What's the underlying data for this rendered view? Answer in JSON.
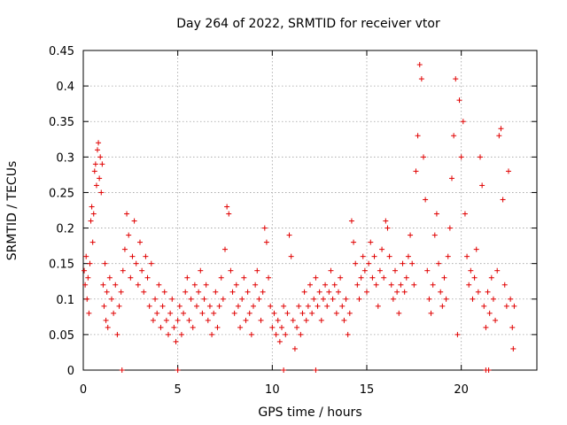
{
  "chart_data": {
    "type": "scatter",
    "title": "Day 264 of 2022, SRMTID for receiver vtor",
    "xlabel": "GPS time / hours",
    "ylabel": "SRMTID / TECUs",
    "xlim": [
      0,
      24
    ],
    "ylim": [
      0,
      0.45
    ],
    "x_ticks": [
      0,
      5,
      10,
      15,
      20
    ],
    "y_ticks": [
      0,
      0.05,
      0.1,
      0.15,
      0.2,
      0.25,
      0.3,
      0.35,
      0.4,
      0.45
    ],
    "y_tick_labels": [
      "0",
      "0.05",
      "0.1",
      "0.15",
      "0.2",
      "0.25",
      "0.3",
      "0.35",
      "0.4",
      "0.45"
    ],
    "grid": true,
    "marker": "plus",
    "series": [
      {
        "color": "#e00000",
        "points": [
          [
            0.05,
            0.14
          ],
          [
            0.1,
            0.12
          ],
          [
            0.15,
            0.16
          ],
          [
            0.2,
            0.1
          ],
          [
            0.25,
            0.13
          ],
          [
            0.3,
            0.08
          ],
          [
            0.35,
            0.15
          ],
          [
            0.4,
            0.21
          ],
          [
            0.45,
            0.23
          ],
          [
            0.5,
            0.18
          ],
          [
            0.55,
            0.22
          ],
          [
            0.6,
            0.28
          ],
          [
            0.65,
            0.29
          ],
          [
            0.7,
            0.26
          ],
          [
            0.75,
            0.31
          ],
          [
            0.8,
            0.32
          ],
          [
            0.85,
            0.27
          ],
          [
            0.9,
            0.3
          ],
          [
            0.95,
            0.25
          ],
          [
            1.0,
            0.29
          ],
          [
            1.05,
            0.12
          ],
          [
            1.1,
            0.09
          ],
          [
            1.15,
            0.15
          ],
          [
            1.2,
            0.07
          ],
          [
            1.25,
            0.11
          ],
          [
            1.3,
            0.06
          ],
          [
            1.4,
            0.13
          ],
          [
            1.5,
            0.1
          ],
          [
            1.6,
            0.08
          ],
          [
            1.7,
            0.12
          ],
          [
            1.8,
            0.05
          ],
          [
            1.9,
            0.09
          ],
          [
            2.0,
            0.11
          ],
          [
            2.1,
            0.14
          ],
          [
            2.2,
            0.17
          ],
          [
            2.3,
            0.22
          ],
          [
            2.4,
            0.19
          ],
          [
            2.5,
            0.13
          ],
          [
            2.6,
            0.16
          ],
          [
            2.7,
            0.21
          ],
          [
            2.8,
            0.15
          ],
          [
            2.9,
            0.12
          ],
          [
            3.0,
            0.18
          ],
          [
            3.1,
            0.14
          ],
          [
            3.2,
            0.11
          ],
          [
            3.3,
            0.16
          ],
          [
            3.4,
            0.13
          ],
          [
            3.5,
            0.09
          ],
          [
            3.6,
            0.15
          ],
          [
            3.7,
            0.07
          ],
          [
            3.8,
            0.1
          ],
          [
            3.9,
            0.08
          ],
          [
            4.0,
            0.12
          ],
          [
            4.1,
            0.06
          ],
          [
            4.2,
            0.09
          ],
          [
            4.3,
            0.11
          ],
          [
            4.4,
            0.07
          ],
          [
            4.5,
            0.05
          ],
          [
            4.6,
            0.08
          ],
          [
            4.7,
            0.1
          ],
          [
            4.8,
            0.06
          ],
          [
            4.9,
            0.04
          ],
          [
            5.0,
            0.07
          ],
          [
            5.1,
            0.09
          ],
          [
            5.2,
            0.05
          ],
          [
            5.3,
            0.08
          ],
          [
            5.4,
            0.11
          ],
          [
            5.5,
            0.13
          ],
          [
            5.6,
            0.07
          ],
          [
            5.7,
            0.1
          ],
          [
            5.8,
            0.06
          ],
          [
            5.9,
            0.12
          ],
          [
            6.0,
            0.09
          ],
          [
            6.1,
            0.11
          ],
          [
            6.2,
            0.14
          ],
          [
            6.3,
            0.08
          ],
          [
            6.4,
            0.1
          ],
          [
            6.5,
            0.12
          ],
          [
            6.6,
            0.07
          ],
          [
            6.7,
            0.09
          ],
          [
            6.8,
            0.05
          ],
          [
            6.9,
            0.08
          ],
          [
            7.0,
            0.11
          ],
          [
            7.1,
            0.06
          ],
          [
            7.2,
            0.09
          ],
          [
            7.3,
            0.13
          ],
          [
            7.4,
            0.1
          ],
          [
            7.5,
            0.17
          ],
          [
            7.6,
            0.23
          ],
          [
            7.7,
            0.22
          ],
          [
            7.8,
            0.14
          ],
          [
            7.9,
            0.11
          ],
          [
            8.0,
            0.08
          ],
          [
            8.1,
            0.12
          ],
          [
            8.2,
            0.09
          ],
          [
            8.3,
            0.06
          ],
          [
            8.4,
            0.1
          ],
          [
            8.5,
            0.13
          ],
          [
            8.6,
            0.07
          ],
          [
            8.7,
            0.11
          ],
          [
            8.8,
            0.08
          ],
          [
            8.9,
            0.05
          ],
          [
            9.0,
            0.09
          ],
          [
            9.1,
            0.12
          ],
          [
            9.2,
            0.14
          ],
          [
            9.3,
            0.1
          ],
          [
            9.4,
            0.07
          ],
          [
            9.5,
            0.11
          ],
          [
            9.6,
            0.2
          ],
          [
            9.7,
            0.18
          ],
          [
            9.8,
            0.13
          ],
          [
            9.9,
            0.09
          ],
          [
            10.0,
            0.06
          ],
          [
            10.1,
            0.08
          ],
          [
            10.2,
            0.05
          ],
          [
            10.3,
            0.07
          ],
          [
            10.4,
            0.04
          ],
          [
            10.5,
            0.06
          ],
          [
            10.6,
            0.09
          ],
          [
            10.7,
            0.05
          ],
          [
            10.8,
            0.08
          ],
          [
            10.9,
            0.19
          ],
          [
            11.0,
            0.16
          ],
          [
            11.1,
            0.07
          ],
          [
            11.2,
            0.03
          ],
          [
            11.3,
            0.06
          ],
          [
            11.4,
            0.09
          ],
          [
            11.5,
            0.05
          ],
          [
            11.6,
            0.08
          ],
          [
            11.7,
            0.11
          ],
          [
            11.8,
            0.07
          ],
          [
            11.9,
            0.09
          ],
          [
            12.0,
            0.12
          ],
          [
            12.1,
            0.08
          ],
          [
            12.2,
            0.1
          ],
          [
            12.3,
            0.13
          ],
          [
            12.4,
            0.09
          ],
          [
            12.5,
            0.11
          ],
          [
            12.6,
            0.07
          ],
          [
            12.7,
            0.1
          ],
          [
            12.8,
            0.12
          ],
          [
            12.9,
            0.09
          ],
          [
            13.0,
            0.11
          ],
          [
            13.1,
            0.14
          ],
          [
            13.2,
            0.1
          ],
          [
            13.3,
            0.12
          ],
          [
            13.4,
            0.08
          ],
          [
            13.5,
            0.11
          ],
          [
            13.6,
            0.13
          ],
          [
            13.7,
            0.09
          ],
          [
            13.8,
            0.07
          ],
          [
            13.9,
            0.1
          ],
          [
            14.0,
            0.05
          ],
          [
            14.1,
            0.08
          ],
          [
            14.2,
            0.21
          ],
          [
            14.3,
            0.18
          ],
          [
            14.4,
            0.15
          ],
          [
            14.5,
            0.12
          ],
          [
            14.6,
            0.1
          ],
          [
            14.7,
            0.13
          ],
          [
            14.8,
            0.16
          ],
          [
            14.9,
            0.14
          ],
          [
            15.0,
            0.11
          ],
          [
            15.1,
            0.15
          ],
          [
            15.2,
            0.18
          ],
          [
            15.3,
            0.13
          ],
          [
            15.4,
            0.16
          ],
          [
            15.5,
            0.12
          ],
          [
            15.6,
            0.09
          ],
          [
            15.7,
            0.14
          ],
          [
            15.8,
            0.17
          ],
          [
            15.9,
            0.13
          ],
          [
            16.0,
            0.21
          ],
          [
            16.1,
            0.2
          ],
          [
            16.2,
            0.16
          ],
          [
            16.3,
            0.12
          ],
          [
            16.4,
            0.1
          ],
          [
            16.5,
            0.14
          ],
          [
            16.6,
            0.11
          ],
          [
            16.7,
            0.08
          ],
          [
            16.8,
            0.12
          ],
          [
            16.9,
            0.15
          ],
          [
            17.0,
            0.11
          ],
          [
            17.1,
            0.13
          ],
          [
            17.2,
            0.16
          ],
          [
            17.3,
            0.19
          ],
          [
            17.4,
            0.15
          ],
          [
            17.5,
            0.12
          ],
          [
            17.6,
            0.28
          ],
          [
            17.7,
            0.33
          ],
          [
            17.8,
            0.43
          ],
          [
            17.9,
            0.41
          ],
          [
            18.0,
            0.3
          ],
          [
            18.1,
            0.24
          ],
          [
            18.2,
            0.14
          ],
          [
            18.3,
            0.1
          ],
          [
            18.4,
            0.08
          ],
          [
            18.5,
            0.12
          ],
          [
            18.6,
            0.19
          ],
          [
            18.7,
            0.22
          ],
          [
            18.8,
            0.15
          ],
          [
            18.9,
            0.11
          ],
          [
            19.0,
            0.09
          ],
          [
            19.1,
            0.13
          ],
          [
            19.2,
            0.1
          ],
          [
            19.3,
            0.16
          ],
          [
            19.4,
            0.2
          ],
          [
            19.5,
            0.27
          ],
          [
            19.6,
            0.33
          ],
          [
            19.7,
            0.41
          ],
          [
            19.8,
            0.05
          ],
          [
            19.9,
            0.38
          ],
          [
            20.0,
            0.3
          ],
          [
            20.1,
            0.35
          ],
          [
            20.2,
            0.22
          ],
          [
            20.3,
            0.16
          ],
          [
            20.4,
            0.12
          ],
          [
            20.5,
            0.14
          ],
          [
            20.6,
            0.1
          ],
          [
            20.7,
            0.13
          ],
          [
            20.8,
            0.17
          ],
          [
            20.9,
            0.11
          ],
          [
            21.0,
            0.3
          ],
          [
            21.1,
            0.26
          ],
          [
            21.2,
            0.09
          ],
          [
            21.3,
            0.06
          ],
          [
            21.4,
            0.11
          ],
          [
            21.5,
            0.08
          ],
          [
            21.6,
            0.13
          ],
          [
            21.7,
            0.1
          ],
          [
            21.8,
            0.07
          ],
          [
            21.9,
            0.14
          ],
          [
            22.0,
            0.33
          ],
          [
            22.1,
            0.34
          ],
          [
            22.2,
            0.24
          ],
          [
            22.3,
            0.12
          ],
          [
            22.4,
            0.09
          ],
          [
            22.5,
            0.28
          ],
          [
            22.6,
            0.1
          ],
          [
            22.7,
            0.06
          ],
          [
            22.75,
            0.03
          ],
          [
            22.8,
            0.09
          ],
          [
            2.05,
            0
          ],
          [
            5.0,
            0
          ],
          [
            10.6,
            0
          ],
          [
            12.3,
            0
          ],
          [
            21.3,
            0
          ],
          [
            21.45,
            0
          ]
        ]
      }
    ]
  }
}
